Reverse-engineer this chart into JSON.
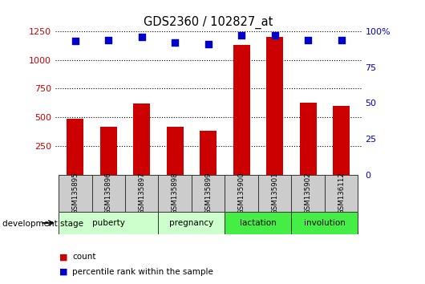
{
  "title": "GDS2360 / 102827_at",
  "samples": [
    "GSM135895",
    "GSM135896",
    "GSM135897",
    "GSM135898",
    "GSM135899",
    "GSM135900",
    "GSM135901",
    "GSM135902",
    "GSM136112"
  ],
  "counts": [
    490,
    420,
    620,
    415,
    385,
    1130,
    1200,
    630,
    600
  ],
  "percentiles": [
    93,
    94,
    96,
    92,
    91,
    97,
    97,
    94,
    94
  ],
  "ylim_left": [
    0,
    1250
  ],
  "ylim_right": [
    0,
    100
  ],
  "yticks_left": [
    250,
    500,
    750,
    1000,
    1250
  ],
  "yticks_right": [
    0,
    25,
    50,
    75,
    100
  ],
  "bar_color": "#cc0000",
  "dot_color": "#0000cc",
  "dev_stage_label": "development stage",
  "legend_count": "count",
  "legend_pct": "percentile rank within the sample",
  "bar_width": 0.5,
  "tick_color_left": "#cc0000",
  "tick_color_right": "#0000cc",
  "sample_box_color": "#cccccc",
  "stage_info": [
    {
      "label": "puberty",
      "start": 0,
      "end": 3,
      "color": "#ccffcc"
    },
    {
      "label": "pregnancy",
      "start": 3,
      "end": 5,
      "color": "#ccffcc"
    },
    {
      "label": "lactation",
      "start": 5,
      "end": 7,
      "color": "#44ee44"
    },
    {
      "label": "involution",
      "start": 7,
      "end": 9,
      "color": "#44ee44"
    }
  ]
}
